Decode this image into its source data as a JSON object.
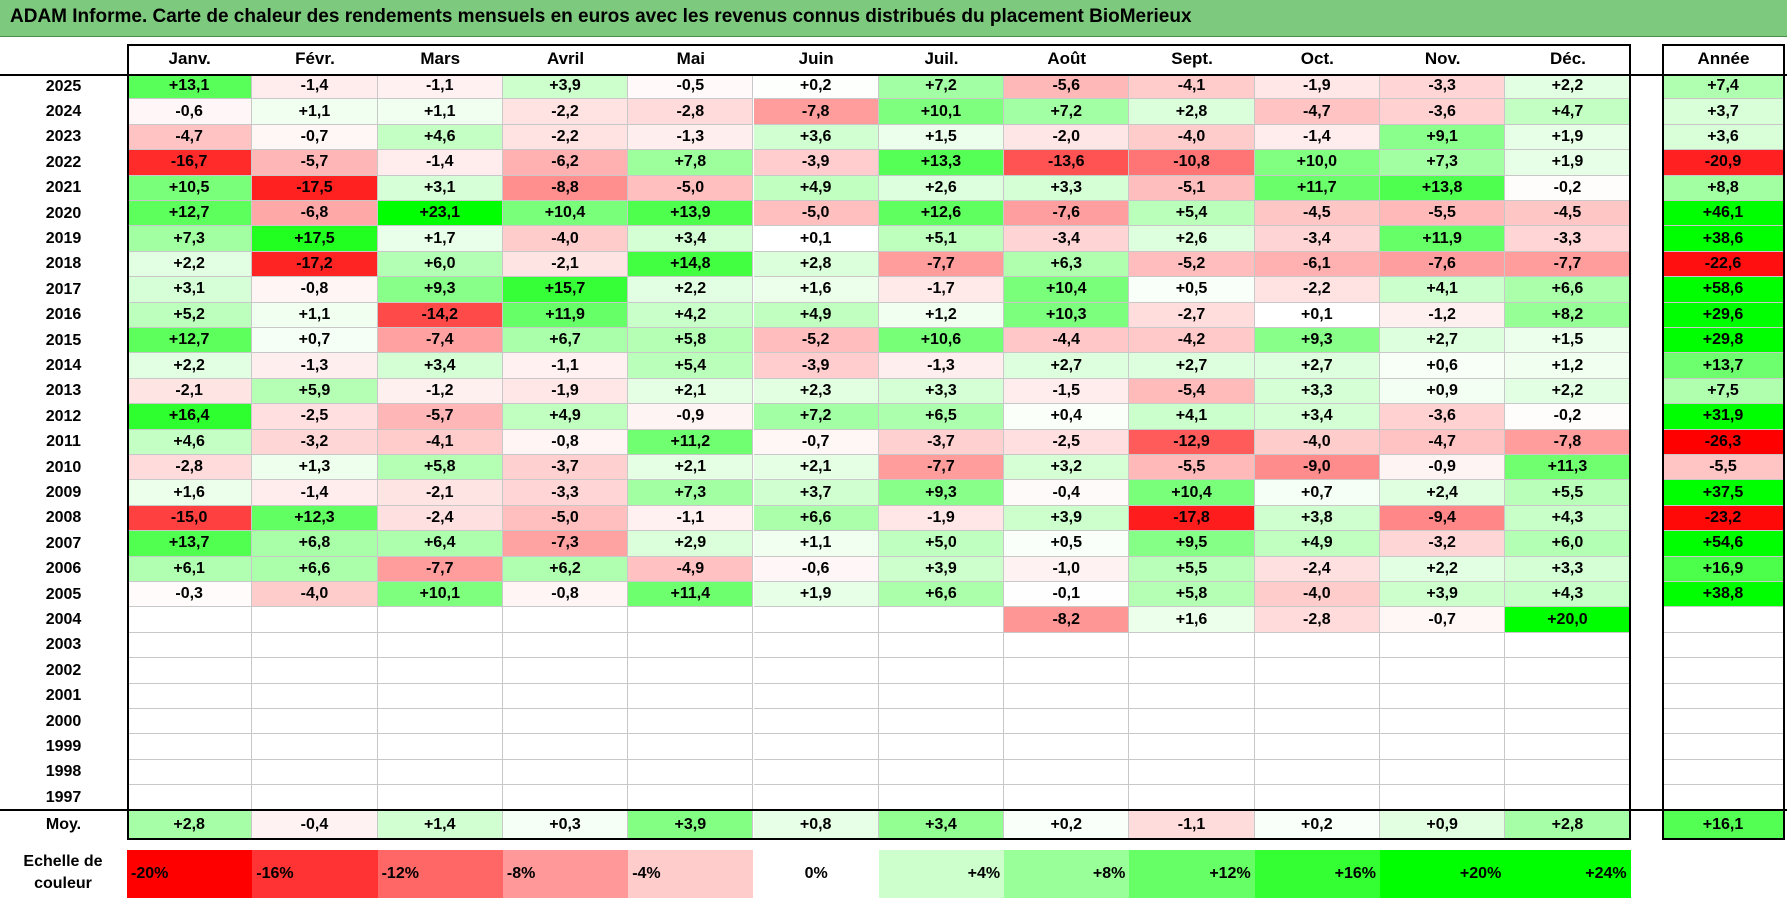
{
  "title": "ADAM Informe. Carte de chaleur des rendements mensuels en euros avec les revenus connus distribués du placement BioMerieux",
  "chart_data": {
    "type": "heatmap",
    "title": "ADAM Informe. Carte de chaleur des rendements mensuels en euros avec les revenus connus distribués du placement BioMerieux",
    "columns": [
      "Janv.",
      "Févr.",
      "Mars",
      "Avril",
      "Mai",
      "Juin",
      "Juil.",
      "Août",
      "Sept.",
      "Oct.",
      "Nov.",
      "Déc."
    ],
    "year_column_label": "Année",
    "rows": [
      {
        "year": "2025",
        "values": [
          "+13,1",
          "-1,4",
          "-1,1",
          "+3,9",
          "-0,5",
          "+0,2",
          "+7,2",
          "-5,6",
          "-4,1",
          "-1,9",
          "-3,3",
          "+2,2"
        ],
        "annual": "+7,4"
      },
      {
        "year": "2024",
        "values": [
          "-0,6",
          "+1,1",
          "+1,1",
          "-2,2",
          "-2,8",
          "-7,8",
          "+10,1",
          "+7,2",
          "+2,8",
          "-4,7",
          "-3,6",
          "+4,7"
        ],
        "annual": "+3,7"
      },
      {
        "year": "2023",
        "values": [
          "-4,7",
          "-0,7",
          "+4,6",
          "-2,2",
          "-1,3",
          "+3,6",
          "+1,5",
          "-2,0",
          "-4,0",
          "-1,4",
          "+9,1",
          "+1,9"
        ],
        "annual": "+3,6"
      },
      {
        "year": "2022",
        "values": [
          "-16,7",
          "-5,7",
          "-1,4",
          "-6,2",
          "+7,8",
          "-3,9",
          "+13,3",
          "-13,6",
          "-10,8",
          "+10,0",
          "+7,3",
          "+1,9"
        ],
        "annual": "-20,9"
      },
      {
        "year": "2021",
        "values": [
          "+10,5",
          "-17,5",
          "+3,1",
          "-8,8",
          "-5,0",
          "+4,9",
          "+2,6",
          "+3,3",
          "-5,1",
          "+11,7",
          "+13,8",
          "-0,2"
        ],
        "annual": "+8,8"
      },
      {
        "year": "2020",
        "values": [
          "+12,7",
          "-6,8",
          "+23,1",
          "+10,4",
          "+13,9",
          "-5,0",
          "+12,6",
          "-7,6",
          "+5,4",
          "-4,5",
          "-5,5",
          "-4,5"
        ],
        "annual": "+46,1"
      },
      {
        "year": "2019",
        "values": [
          "+7,3",
          "+17,5",
          "+1,7",
          "-4,0",
          "+3,4",
          "+0,1",
          "+5,1",
          "-3,4",
          "+2,6",
          "-3,4",
          "+11,9",
          "-3,3"
        ],
        "annual": "+38,6"
      },
      {
        "year": "2018",
        "values": [
          "+2,2",
          "-17,2",
          "+6,0",
          "-2,1",
          "+14,8",
          "+2,8",
          "-7,7",
          "+6,3",
          "-5,2",
          "-6,1",
          "-7,6",
          "-7,7"
        ],
        "annual": "-22,6"
      },
      {
        "year": "2017",
        "values": [
          "+3,1",
          "-0,8",
          "+9,3",
          "+15,7",
          "+2,2",
          "+1,6",
          "-1,7",
          "+10,4",
          "+0,5",
          "-2,2",
          "+4,1",
          "+6,6"
        ],
        "annual": "+58,6"
      },
      {
        "year": "2016",
        "values": [
          "+5,2",
          "+1,1",
          "-14,2",
          "+11,9",
          "+4,2",
          "+4,9",
          "+1,2",
          "+10,3",
          "-2,7",
          "+0,1",
          "-1,2",
          "+8,2"
        ],
        "annual": "+29,6"
      },
      {
        "year": "2015",
        "values": [
          "+12,7",
          "+0,7",
          "-7,4",
          "+6,7",
          "+5,8",
          "-5,2",
          "+10,6",
          "-4,4",
          "-4,2",
          "+9,3",
          "+2,7",
          "+1,5"
        ],
        "annual": "+29,8"
      },
      {
        "year": "2014",
        "values": [
          "+2,2",
          "-1,3",
          "+3,4",
          "-1,1",
          "+5,4",
          "-3,9",
          "-1,3",
          "+2,7",
          "+2,7",
          "+2,7",
          "+0,6",
          "+1,2"
        ],
        "annual": "+13,7"
      },
      {
        "year": "2013",
        "values": [
          "-2,1",
          "+5,9",
          "-1,2",
          "-1,9",
          "+2,1",
          "+2,3",
          "+3,3",
          "-1,5",
          "-5,4",
          "+3,3",
          "+0,9",
          "+2,2"
        ],
        "annual": "+7,5"
      },
      {
        "year": "2012",
        "values": [
          "+16,4",
          "-2,5",
          "-5,7",
          "+4,9",
          "-0,9",
          "+7,2",
          "+6,5",
          "+0,4",
          "+4,1",
          "+3,4",
          "-3,6",
          "-0,2"
        ],
        "annual": "+31,9"
      },
      {
        "year": "2011",
        "values": [
          "+4,6",
          "-3,2",
          "-4,1",
          "-0,8",
          "+11,2",
          "-0,7",
          "-3,7",
          "-2,5",
          "-12,9",
          "-4,0",
          "-4,7",
          "-7,8"
        ],
        "annual": "-26,3"
      },
      {
        "year": "2010",
        "values": [
          "-2,8",
          "+1,3",
          "+5,8",
          "-3,7",
          "+2,1",
          "+2,1",
          "-7,7",
          "+3,2",
          "-5,5",
          "-9,0",
          "-0,9",
          "+11,3"
        ],
        "annual": "-5,5"
      },
      {
        "year": "2009",
        "values": [
          "+1,6",
          "-1,4",
          "-2,1",
          "-3,3",
          "+7,3",
          "+3,7",
          "+9,3",
          "-0,4",
          "+10,4",
          "+0,7",
          "+2,4",
          "+5,5"
        ],
        "annual": "+37,5"
      },
      {
        "year": "2008",
        "values": [
          "-15,0",
          "+12,3",
          "-2,4",
          "-5,0",
          "-1,1",
          "+6,6",
          "-1,9",
          "+3,9",
          "-17,8",
          "+3,8",
          "-9,4",
          "+4,3"
        ],
        "annual": "-23,2"
      },
      {
        "year": "2007",
        "values": [
          "+13,7",
          "+6,8",
          "+6,4",
          "-7,3",
          "+2,9",
          "+1,1",
          "+5,0",
          "+0,5",
          "+9,5",
          "+4,9",
          "-3,2",
          "+6,0"
        ],
        "annual": "+54,6"
      },
      {
        "year": "2006",
        "values": [
          "+6,1",
          "+6,6",
          "-7,7",
          "+6,2",
          "-4,9",
          "-0,6",
          "+3,9",
          "-1,0",
          "+5,5",
          "-2,4",
          "+2,2",
          "+3,3"
        ],
        "annual": "+16,9"
      },
      {
        "year": "2005",
        "values": [
          "-0,3",
          "-4,0",
          "+10,1",
          "-0,8",
          "+11,4",
          "+1,9",
          "+6,6",
          "-0,1",
          "+5,8",
          "-4,0",
          "+3,9",
          "+4,3"
        ],
        "annual": "+38,8"
      },
      {
        "year": "2004",
        "values": [
          "",
          "",
          "",
          "",
          "",
          "",
          "",
          "-8,2",
          "+1,6",
          "-2,8",
          "-0,7",
          "+20,0"
        ],
        "annual": ""
      },
      {
        "year": "2003",
        "values": [
          "",
          "",
          "",
          "",
          "",
          "",
          "",
          "",
          "",
          "",
          "",
          ""
        ],
        "annual": ""
      },
      {
        "year": "2002",
        "values": [
          "",
          "",
          "",
          "",
          "",
          "",
          "",
          "",
          "",
          "",
          "",
          ""
        ],
        "annual": ""
      },
      {
        "year": "2001",
        "values": [
          "",
          "",
          "",
          "",
          "",
          "",
          "",
          "",
          "",
          "",
          "",
          ""
        ],
        "annual": ""
      },
      {
        "year": "2000",
        "values": [
          "",
          "",
          "",
          "",
          "",
          "",
          "",
          "",
          "",
          "",
          "",
          ""
        ],
        "annual": ""
      },
      {
        "year": "1999",
        "values": [
          "",
          "",
          "",
          "",
          "",
          "",
          "",
          "",
          "",
          "",
          "",
          ""
        ],
        "annual": ""
      },
      {
        "year": "1998",
        "values": [
          "",
          "",
          "",
          "",
          "",
          "",
          "",
          "",
          "",
          "",
          "",
          ""
        ],
        "annual": ""
      },
      {
        "year": "1997",
        "values": [
          "",
          "",
          "",
          "",
          "",
          "",
          "",
          "",
          "",
          "",
          "",
          ""
        ],
        "annual": ""
      }
    ],
    "average": {
      "label": "Moy.",
      "values": [
        "+2,8",
        "-0,4",
        "+1,4",
        "+0,3",
        "+3,9",
        "+0,8",
        "+3,4",
        "+0,2",
        "-1,1",
        "+0,2",
        "+0,9",
        "+2,8"
      ],
      "annual": "+16,1"
    },
    "color_scale": {
      "label_line1": "Echelle de",
      "label_line2": "couleur",
      "steps": [
        {
          "label": "-20%",
          "value": -20,
          "color": "#ff0000"
        },
        {
          "label": "-16%",
          "value": -16,
          "color": "#ff3333"
        },
        {
          "label": "-12%",
          "value": -12,
          "color": "#ff6666"
        },
        {
          "label": "-8%",
          "value": -8,
          "color": "#ff9999"
        },
        {
          "label": "-4%",
          "value": -4,
          "color": "#ffcccc"
        },
        {
          "label": "0%",
          "value": 0,
          "color": "#ffffff"
        },
        {
          "label": "+4%",
          "value": 4,
          "color": "#ccffcc"
        },
        {
          "label": "+8%",
          "value": 8,
          "color": "#99ff99"
        },
        {
          "label": "+12%",
          "value": 12,
          "color": "#66ff66"
        },
        {
          "label": "+16%",
          "value": 16,
          "color": "#33ff33"
        },
        {
          "label": "+20%",
          "value": 20,
          "color": "#00ff00"
        },
        {
          "label": "+24%",
          "value": 24,
          "color": "#00ff00"
        }
      ]
    }
  }
}
